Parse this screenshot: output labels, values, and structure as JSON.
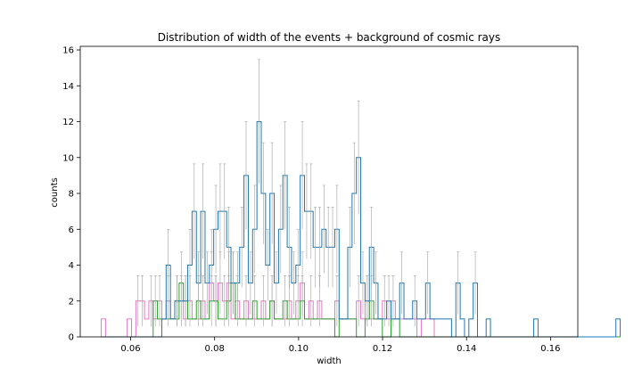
{
  "chart_data": {
    "type": "histogram-step",
    "title": "Distribution of width of the events + background of cosmic rays",
    "xlabel": "width",
    "ylabel": "counts",
    "xlim": [
      0.048,
      0.1665
    ],
    "ylim": [
      0,
      16.2
    ],
    "x_ticks": [
      "0.06",
      "0.08",
      "0.10",
      "0.12",
      "0.14",
      "0.16"
    ],
    "y_ticks": [
      "0",
      "2",
      "4",
      "6",
      "8",
      "10",
      "12",
      "14",
      "16"
    ],
    "bin_start": 0.053,
    "bin_width": 0.00103,
    "grid": false,
    "colors": {
      "blue": "#1f77b4",
      "green": "#2ca02c",
      "pink": "#e377c2",
      "error": "#a0a0a0"
    },
    "series": [
      {
        "color_key": "blue",
        "values": [
          0,
          0,
          0,
          0,
          0,
          0,
          0,
          0,
          0,
          0,
          0,
          0,
          0,
          0,
          1,
          4,
          1,
          2,
          2,
          2,
          4,
          7,
          3,
          7,
          3,
          4,
          6,
          7,
          7,
          5,
          3,
          3,
          5,
          9,
          3,
          6,
          12,
          8,
          4,
          8,
          3,
          6,
          9,
          5,
          3,
          4,
          9,
          7,
          7,
          5,
          5,
          6,
          5,
          5,
          6,
          1,
          1,
          5,
          8,
          10,
          3,
          2,
          5,
          3,
          1,
          1,
          2,
          1,
          1,
          3,
          1,
          1,
          2,
          1,
          1,
          3,
          1,
          1,
          1,
          1,
          1,
          0,
          3,
          1,
          0,
          1,
          3,
          0,
          0,
          1,
          0,
          0,
          0,
          0,
          0,
          0,
          0,
          0,
          0,
          0,
          1,
          0,
          0,
          0,
          0,
          0,
          0,
          0,
          0,
          0,
          0,
          0,
          0,
          0,
          0,
          0,
          0,
          0,
          0,
          1
        ]
      },
      {
        "color_key": "green",
        "values": [
          0,
          0,
          0,
          0,
          0,
          0,
          0,
          0,
          0,
          0,
          0,
          0,
          2,
          1,
          1,
          1,
          1,
          1,
          3,
          2,
          1,
          1,
          2,
          1,
          1,
          2,
          2,
          1,
          1,
          2,
          3,
          1,
          1,
          1,
          1,
          2,
          1,
          1,
          1,
          2,
          1,
          1,
          2,
          1,
          1,
          1,
          2,
          1,
          1,
          1,
          1,
          1,
          1,
          1,
          0,
          1,
          1,
          1,
          1,
          0,
          0,
          1,
          2,
          1,
          1,
          0,
          0,
          1,
          1,
          0,
          0,
          0,
          0,
          0,
          0,
          0,
          0,
          0,
          0,
          0,
          0,
          0,
          0,
          0,
          0,
          0,
          0,
          0,
          0,
          0,
          0,
          0,
          0,
          0,
          0,
          0,
          0,
          0,
          0,
          0,
          0,
          0,
          0,
          0,
          0,
          0,
          0,
          0,
          0,
          0,
          0,
          0,
          0,
          0,
          0,
          0,
          0,
          0,
          0,
          0
        ]
      },
      {
        "color_key": "pink",
        "values": [
          1,
          0,
          0,
          0,
          0,
          0,
          1,
          0,
          2,
          2,
          1,
          2,
          1,
          2,
          1,
          2,
          1,
          2,
          2,
          1,
          2,
          1,
          1,
          2,
          1,
          3,
          2,
          3,
          2,
          3,
          1,
          2,
          1,
          2,
          1,
          1,
          1,
          2,
          1,
          2,
          1,
          1,
          1,
          2,
          1,
          2,
          3,
          1,
          2,
          1,
          2,
          1,
          1,
          1,
          2,
          1,
          1,
          1,
          1,
          2,
          1,
          2,
          1,
          1,
          1,
          2,
          1,
          2,
          1,
          1,
          1,
          1,
          1,
          0,
          1,
          1,
          1,
          0,
          0,
          0,
          0,
          0,
          0,
          0,
          0,
          0,
          0,
          0,
          0,
          0,
          0,
          0,
          0,
          0,
          0,
          0,
          0,
          0,
          0,
          0,
          0,
          0,
          0,
          0,
          0,
          0,
          0,
          0,
          0,
          0,
          0,
          0,
          0,
          0,
          0,
          0,
          0,
          0,
          0,
          0
        ]
      }
    ]
  }
}
